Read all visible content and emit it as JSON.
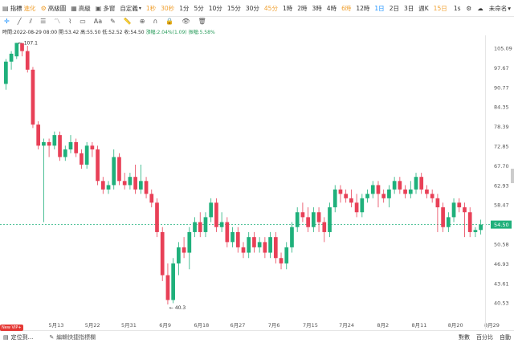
{
  "toolbar": {
    "indicators_label": "指標",
    "indicators_badge": "進化",
    "advanced_trade_label": "高級圖",
    "pro_label": "高級",
    "multi_label": "多窗",
    "custom_label": "自定義",
    "intervals": [
      {
        "label": "1秒",
        "state": "vip"
      },
      {
        "label": "30秒",
        "state": "vip"
      },
      {
        "label": "1分",
        "state": ""
      },
      {
        "label": "5分",
        "state": ""
      },
      {
        "label": "10分",
        "state": ""
      },
      {
        "label": "15分",
        "state": ""
      },
      {
        "label": "30分",
        "state": ""
      },
      {
        "label": "45分",
        "state": "vip"
      },
      {
        "label": "1時",
        "state": ""
      },
      {
        "label": "2時",
        "state": ""
      },
      {
        "label": "3時",
        "state": ""
      },
      {
        "label": "4時",
        "state": ""
      },
      {
        "label": "6時",
        "state": "vip"
      },
      {
        "label": "12時",
        "state": ""
      },
      {
        "label": "1日",
        "state": "active"
      },
      {
        "label": "2日",
        "state": ""
      },
      {
        "label": "3日",
        "state": ""
      },
      {
        "label": "週K",
        "state": ""
      },
      {
        "label": "15日",
        "state": "vip"
      }
    ],
    "speed_label": "1s",
    "user_label": "未命名"
  },
  "info": {
    "time_label": "時間:2022-08-29 08:00",
    "open": "開:53.42",
    "high": "高:55.50",
    "low": "低:52.52",
    "close": "收:54.50",
    "change": "漲幅:2.04%(1.09)",
    "amplitude": "振幅:5.58%"
  },
  "chart_data": {
    "type": "candlestick",
    "price_axis_ticks": [
      "105.09",
      "97.67",
      "90.77",
      "84.35",
      "78.39",
      "72.85",
      "67.70",
      "62.93",
      "58.47",
      "54.50",
      "50.58",
      "46.93",
      "43.61",
      "40.53"
    ],
    "date_axis_ticks": [
      "5月13",
      "5月22",
      "5月31",
      "6月9",
      "6月18",
      "6月27",
      "7月6",
      "7月15",
      "7月24",
      "8月2",
      "8月11",
      "8月20",
      "8月29"
    ],
    "current_price": "54.50",
    "annotations": [
      {
        "label": "107.1",
        "price": 107.1
      },
      {
        "label": "40.3",
        "price": 40.3
      }
    ],
    "up_color": "#1fb07b",
    "down_color": "#e84057",
    "candles": [
      [
        92,
        100,
        101,
        90
      ],
      [
        100,
        103,
        104,
        97
      ],
      [
        102,
        107.1,
        107.1,
        101
      ],
      [
        107,
        104,
        107,
        102
      ],
      [
        104,
        97,
        106,
        96
      ],
      [
        97,
        79,
        98,
        78
      ],
      [
        79,
        73,
        80,
        72
      ],
      [
        73,
        74,
        75,
        55
      ],
      [
        74,
        73,
        75,
        70
      ],
      [
        73,
        76,
        77,
        72
      ],
      [
        76,
        70,
        77,
        69
      ],
      [
        70,
        72,
        73,
        69
      ],
      [
        72,
        74,
        76,
        71
      ],
      [
        74,
        71,
        75,
        70
      ],
      [
        71,
        68,
        72,
        67
      ],
      [
        68,
        73,
        74,
        67
      ],
      [
        73,
        72,
        74,
        70
      ],
      [
        72,
        64,
        73,
        63
      ],
      [
        64,
        62,
        65,
        61
      ],
      [
        62,
        63,
        64,
        61
      ],
      [
        63,
        70,
        72,
        62
      ],
      [
        70,
        64,
        71,
        63
      ],
      [
        64,
        63,
        66,
        62
      ],
      [
        63,
        65,
        66,
        62
      ],
      [
        65,
        62,
        68,
        61
      ],
      [
        62,
        64,
        68,
        61
      ],
      [
        64,
        61,
        65,
        60
      ],
      [
        61,
        59,
        62,
        58
      ],
      [
        59,
        53,
        60,
        52
      ],
      [
        53,
        45,
        54,
        44
      ],
      [
        45,
        41,
        47,
        40.3
      ],
      [
        41,
        47,
        48,
        40.5
      ],
      [
        47,
        50,
        51,
        45
      ],
      [
        50,
        49,
        52,
        48
      ],
      [
        49,
        53,
        54,
        46
      ],
      [
        53,
        55,
        56,
        52
      ],
      [
        55,
        53,
        57,
        52
      ],
      [
        53,
        56,
        57,
        52
      ],
      [
        56,
        59,
        60,
        55
      ],
      [
        59,
        54,
        60,
        53
      ],
      [
        54,
        55,
        57,
        53
      ],
      [
        55,
        51,
        56,
        50
      ],
      [
        51,
        53,
        54,
        50
      ],
      [
        53,
        50,
        54,
        49
      ],
      [
        50,
        49,
        51,
        48
      ],
      [
        49,
        52,
        53,
        48
      ],
      [
        52,
        50,
        53,
        49
      ],
      [
        50,
        51,
        52,
        49
      ],
      [
        51,
        49,
        52,
        48
      ],
      [
        49,
        52,
        53,
        48
      ],
      [
        52,
        48,
        53,
        47
      ],
      [
        48,
        47,
        49,
        46
      ],
      [
        47,
        50,
        51,
        46
      ],
      [
        50,
        54,
        55,
        49
      ],
      [
        54,
        57,
        58,
        53
      ],
      [
        57,
        56,
        59,
        55
      ],
      [
        56,
        54,
        58,
        53
      ],
      [
        54,
        57,
        58,
        53
      ],
      [
        57,
        55,
        58,
        53
      ],
      [
        55,
        53,
        56,
        51
      ],
      [
        53,
        58,
        59,
        52
      ],
      [
        58,
        62,
        63,
        57
      ],
      [
        62,
        61,
        63,
        59
      ],
      [
        61,
        60,
        62,
        59
      ],
      [
        60,
        59,
        62,
        58
      ],
      [
        59,
        57,
        61,
        56
      ],
      [
        57,
        60,
        61,
        56
      ],
      [
        60,
        61,
        62,
        59
      ],
      [
        61,
        63,
        64,
        60
      ],
      [
        63,
        61,
        64,
        58
      ],
      [
        61,
        60,
        62,
        59
      ],
      [
        60,
        62,
        63,
        58
      ],
      [
        62,
        64,
        65,
        61
      ],
      [
        64,
        62,
        65,
        61
      ],
      [
        62,
        61,
        63,
        60
      ],
      [
        61,
        62,
        64,
        60
      ],
      [
        62,
        65,
        66,
        61
      ],
      [
        65,
        62,
        66,
        61
      ],
      [
        62,
        61,
        63,
        60
      ],
      [
        61,
        60,
        62,
        59
      ],
      [
        60,
        58,
        61,
        53
      ],
      [
        58,
        54,
        59,
        53
      ],
      [
        54,
        56,
        57,
        53
      ],
      [
        56,
        59,
        60,
        55
      ],
      [
        59,
        58,
        60,
        57
      ],
      [
        58,
        57,
        59,
        52
      ],
      [
        57,
        53,
        58,
        52
      ],
      [
        53,
        53.42,
        54,
        52
      ],
      [
        53.42,
        54.5,
        55.5,
        52.52
      ]
    ]
  },
  "bottom": {
    "vip_badge": "New VIP+",
    "locate_label": "定位到...",
    "edit_label": "編輯快捷指標欄",
    "log_label": "對數",
    "percent_label": "百分比",
    "auto_label": "自動"
  }
}
